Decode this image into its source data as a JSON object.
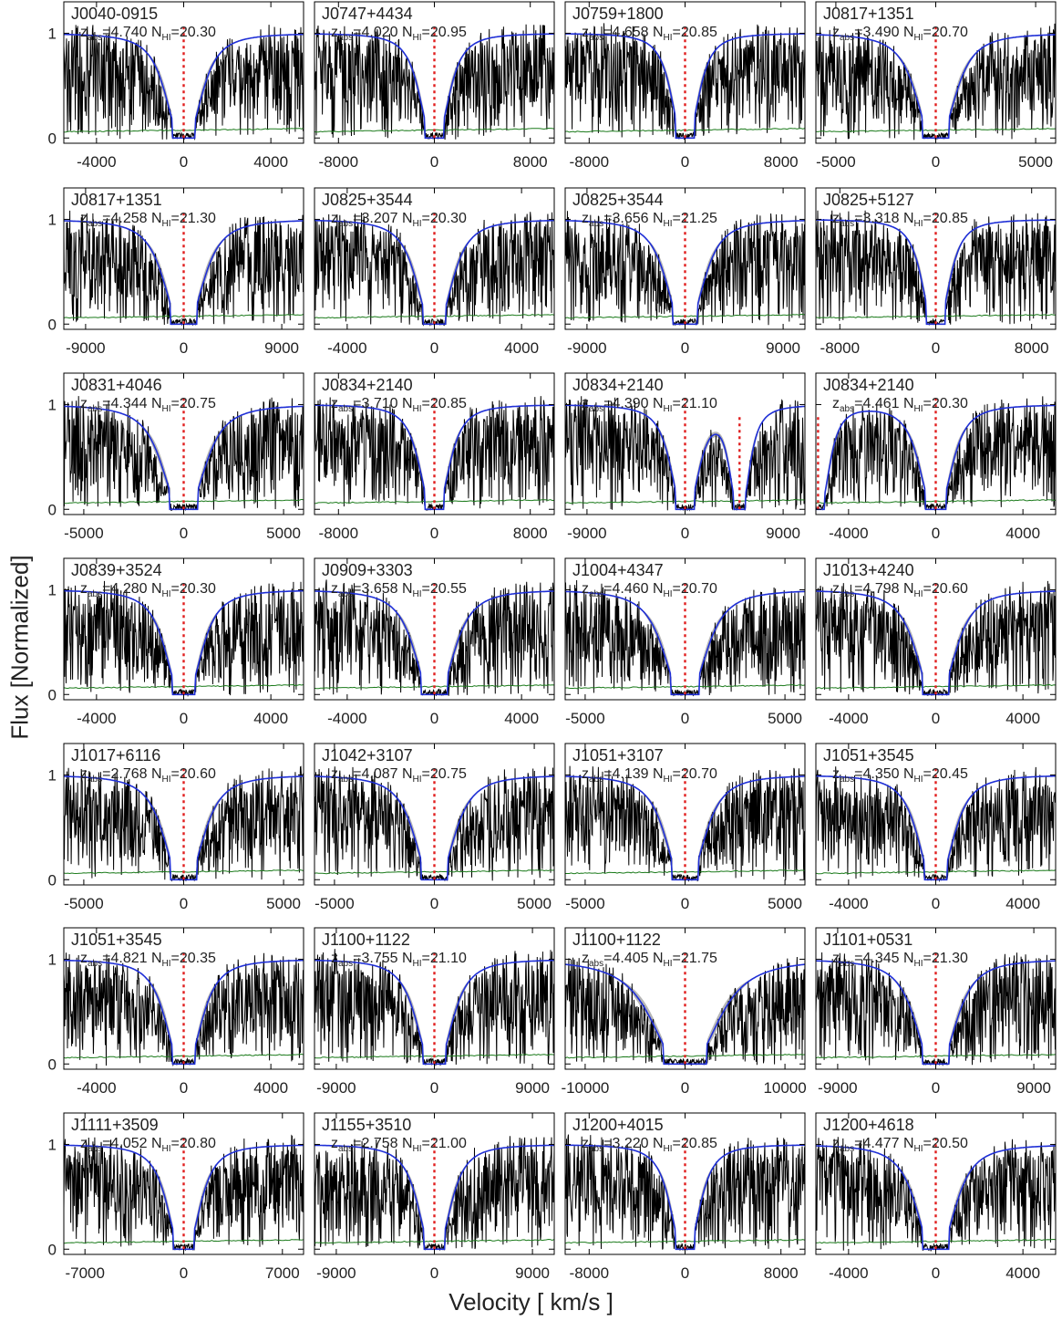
{
  "figure": {
    "xlabel": "Velocity [ km/s ]",
    "ylabel": "Flux [Normalized]"
  },
  "colors": {
    "model": "#1f2fd6",
    "model_band": "#b5b5b5",
    "data": "#000000",
    "error": "#1a7a1a",
    "zero_marker": "#e02020"
  },
  "chart_data": [
    {
      "type": "line",
      "quasar": "J0040-0915",
      "zabs": "4.740",
      "nhi": "20.30",
      "xlim": [
        -5500,
        5500
      ],
      "xticks": [
        -4000,
        0,
        4000
      ],
      "xticklabels": [
        "-4000",
        "0",
        "4000"
      ],
      "ylim": [
        -0.05,
        1.3
      ],
      "yticks": [
        0,
        1
      ],
      "yticklabels": [
        "0",
        "1"
      ],
      "core_halfwidth": 1000,
      "extra_marker": null
    },
    {
      "type": "line",
      "quasar": "J0747+4434",
      "zabs": "4.020",
      "nhi": "20.95",
      "xlim": [
        -10000,
        10000
      ],
      "xticks": [
        -8000,
        0,
        8000
      ],
      "xticklabels": [
        "-8000",
        "0",
        "8000"
      ],
      "ylim": [
        -0.05,
        1.3
      ],
      "yticks": [
        0,
        1
      ],
      "yticklabels": [
        "0",
        "1"
      ],
      "core_halfwidth": 1500,
      "extra_marker": null
    },
    {
      "type": "line",
      "quasar": "J0759+1800",
      "zabs": "4.658",
      "nhi": "20.85",
      "xlim": [
        -10000,
        10000
      ],
      "xticks": [
        -8000,
        0,
        8000
      ],
      "xticklabels": [
        "-8000",
        "0",
        "8000"
      ],
      "ylim": [
        -0.05,
        1.3
      ],
      "yticks": [
        0,
        1
      ],
      "yticklabels": [
        "0",
        "1"
      ],
      "core_halfwidth": 1400,
      "extra_marker": null
    },
    {
      "type": "line",
      "quasar": "J0817+1351",
      "zabs": "3.490",
      "nhi": "20.70",
      "xlim": [
        -6000,
        6000
      ],
      "xticks": [
        -5000,
        0,
        5000
      ],
      "xticklabels": [
        "-5000",
        "0",
        "5000"
      ],
      "ylim": [
        -0.05,
        1.3
      ],
      "yticks": [
        0,
        1
      ],
      "yticklabels": [
        "0",
        "1"
      ],
      "core_halfwidth": 1200,
      "extra_marker": null
    },
    {
      "type": "line",
      "quasar": "J0817+1351",
      "zabs": "4.258",
      "nhi": "21.30",
      "xlim": [
        -11000,
        11000
      ],
      "xticks": [
        -9000,
        0,
        9000
      ],
      "xticklabels": [
        "-9000",
        "0",
        "9000"
      ],
      "ylim": [
        -0.05,
        1.3
      ],
      "yticks": [
        0,
        1
      ],
      "yticklabels": [
        "0",
        "1"
      ],
      "core_halfwidth": 2200,
      "extra_marker": null
    },
    {
      "type": "line",
      "quasar": "J0825+3544",
      "zabs": "3.207",
      "nhi": "20.30",
      "xlim": [
        -5500,
        5500
      ],
      "xticks": [
        -4000,
        0,
        4000
      ],
      "xticklabels": [
        "-4000",
        "0",
        "4000"
      ],
      "ylim": [
        -0.05,
        1.3
      ],
      "yticks": [
        0,
        1
      ],
      "yticklabels": [
        "0",
        "1"
      ],
      "core_halfwidth": 1000,
      "extra_marker": null
    },
    {
      "type": "line",
      "quasar": "J0825+3544",
      "zabs": "3.656",
      "nhi": "21.25",
      "xlim": [
        -11000,
        11000
      ],
      "xticks": [
        -9000,
        0,
        9000
      ],
      "xticklabels": [
        "-9000",
        "0",
        "9000"
      ],
      "ylim": [
        -0.05,
        1.3
      ],
      "yticks": [
        0,
        1
      ],
      "yticklabels": [
        "0",
        "1"
      ],
      "core_halfwidth": 2100,
      "extra_marker": null
    },
    {
      "type": "line",
      "quasar": "J0825+5127",
      "zabs": "3.318",
      "nhi": "20.85",
      "xlim": [
        -10000,
        10000
      ],
      "xticks": [
        -8000,
        0,
        8000
      ],
      "xticklabels": [
        "-8000",
        "0",
        "8000"
      ],
      "ylim": [
        -0.05,
        1.3
      ],
      "yticks": [
        0,
        1
      ],
      "yticklabels": [
        "0",
        "1"
      ],
      "core_halfwidth": 1400,
      "extra_marker": null
    },
    {
      "type": "line",
      "quasar": "J0831+4046",
      "zabs": "4.344",
      "nhi": "20.75",
      "xlim": [
        -6000,
        6000
      ],
      "xticks": [
        -5000,
        0,
        5000
      ],
      "xticklabels": [
        "-5000",
        "0",
        "5000"
      ],
      "ylim": [
        -0.05,
        1.3
      ],
      "yticks": [
        0,
        1
      ],
      "yticklabels": [
        "0",
        "1"
      ],
      "core_halfwidth": 1300,
      "extra_marker": null
    },
    {
      "type": "line",
      "quasar": "J0834+2140",
      "zabs": "3.710",
      "nhi": "20.85",
      "xlim": [
        -10000,
        10000
      ],
      "xticks": [
        -8000,
        0,
        8000
      ],
      "xticklabels": [
        "-8000",
        "0",
        "8000"
      ],
      "ylim": [
        -0.05,
        1.3
      ],
      "yticks": [
        0,
        1
      ],
      "yticklabels": [
        "0",
        "1"
      ],
      "core_halfwidth": 1500,
      "extra_marker": null
    },
    {
      "type": "line",
      "quasar": "J0834+2140",
      "zabs": "4.390",
      "nhi": "21.10",
      "xlim": [
        -11000,
        11000
      ],
      "xticks": [
        -9000,
        0,
        9000
      ],
      "xticklabels": [
        "-9000",
        "0",
        "9000"
      ],
      "ylim": [
        -0.05,
        1.3
      ],
      "yticks": [
        0,
        1
      ],
      "yticklabels": [
        "0",
        "1"
      ],
      "core_halfwidth": 1600,
      "extra_marker": 5000
    },
    {
      "type": "line",
      "quasar": "J0834+2140",
      "zabs": "4.461",
      "nhi": "20.30",
      "xlim": [
        -5500,
        5500
      ],
      "xticks": [
        -4000,
        0,
        4000
      ],
      "xticklabels": [
        "-4000",
        "0",
        "4000"
      ],
      "ylim": [
        -0.05,
        1.3
      ],
      "yticks": [
        0,
        1
      ],
      "yticklabels": [
        "0",
        "1"
      ],
      "core_halfwidth": 900,
      "extra_marker": -5400
    },
    {
      "type": "line",
      "quasar": "J0839+3524",
      "zabs": "4.280",
      "nhi": "20.30",
      "xlim": [
        -5500,
        5500
      ],
      "xticks": [
        -4000,
        0,
        4000
      ],
      "xticklabels": [
        "-4000",
        "0",
        "4000"
      ],
      "ylim": [
        -0.05,
        1.3
      ],
      "yticks": [
        0,
        1
      ],
      "yticklabels": [
        "0",
        "1"
      ],
      "core_halfwidth": 1000,
      "extra_marker": null
    },
    {
      "type": "line",
      "quasar": "J0909+3303",
      "zabs": "3.658",
      "nhi": "20.55",
      "xlim": [
        -5500,
        5500
      ],
      "xticks": [
        -4000,
        0,
        4000
      ],
      "xticklabels": [
        "-4000",
        "0",
        "4000"
      ],
      "ylim": [
        -0.05,
        1.3
      ],
      "yticks": [
        0,
        1
      ],
      "yticklabels": [
        "0",
        "1"
      ],
      "core_halfwidth": 1100,
      "extra_marker": null
    },
    {
      "type": "line",
      "quasar": "J1004+4347",
      "zabs": "4.460",
      "nhi": "20.70",
      "xlim": [
        -6000,
        6000
      ],
      "xticks": [
        -5000,
        0,
        5000
      ],
      "xticklabels": [
        "-5000",
        "0",
        "5000"
      ],
      "ylim": [
        -0.05,
        1.3
      ],
      "yticks": [
        0,
        1
      ],
      "yticklabels": [
        "0",
        "1"
      ],
      "core_halfwidth": 1300,
      "extra_marker": null
    },
    {
      "type": "line",
      "quasar": "J1013+4240",
      "zabs": "4.798",
      "nhi": "20.60",
      "xlim": [
        -5500,
        5500
      ],
      "xticks": [
        -4000,
        0,
        4000
      ],
      "xticklabels": [
        "-4000",
        "0",
        "4000"
      ],
      "ylim": [
        -0.05,
        1.3
      ],
      "yticks": [
        0,
        1
      ],
      "yticklabels": [
        "0",
        "1"
      ],
      "core_halfwidth": 1100,
      "extra_marker": null
    },
    {
      "type": "line",
      "quasar": "J1017+6116",
      "zabs": "2.768",
      "nhi": "20.60",
      "xlim": [
        -6000,
        6000
      ],
      "xticks": [
        -5000,
        0,
        5000
      ],
      "xticklabels": [
        "-5000",
        "0",
        "5000"
      ],
      "ylim": [
        -0.05,
        1.3
      ],
      "yticks": [
        0,
        1
      ],
      "yticklabels": [
        "0",
        "1"
      ],
      "core_halfwidth": 1200,
      "extra_marker": null
    },
    {
      "type": "line",
      "quasar": "J1042+3107",
      "zabs": "4.087",
      "nhi": "20.75",
      "xlim": [
        -6000,
        6000
      ],
      "xticks": [
        -5000,
        0,
        5000
      ],
      "xticklabels": [
        "-5000",
        "0",
        "5000"
      ],
      "ylim": [
        -0.05,
        1.3
      ],
      "yticks": [
        0,
        1
      ],
      "yticklabels": [
        "0",
        "1"
      ],
      "core_halfwidth": 1200,
      "extra_marker": null
    },
    {
      "type": "line",
      "quasar": "J1051+3107",
      "zabs": "4.139",
      "nhi": "20.70",
      "xlim": [
        -6000,
        6000
      ],
      "xticks": [
        -5000,
        0,
        5000
      ],
      "xticklabels": [
        "-5000",
        "0",
        "5000"
      ],
      "ylim": [
        -0.05,
        1.3
      ],
      "yticks": [
        0,
        1
      ],
      "yticklabels": [
        "0",
        "1"
      ],
      "core_halfwidth": 1200,
      "extra_marker": null
    },
    {
      "type": "line",
      "quasar": "J1051+3545",
      "zabs": "4.350",
      "nhi": "20.45",
      "xlim": [
        -5500,
        5500
      ],
      "xticks": [
        -4000,
        0,
        4000
      ],
      "xticklabels": [
        "-4000",
        "0",
        "4000"
      ],
      "ylim": [
        -0.05,
        1.3
      ],
      "yticks": [
        0,
        1
      ],
      "yticklabels": [
        "0",
        "1"
      ],
      "core_halfwidth": 1000,
      "extra_marker": null
    },
    {
      "type": "line",
      "quasar": "J1051+3545",
      "zabs": "4.821",
      "nhi": "20.35",
      "xlim": [
        -5500,
        5500
      ],
      "xticks": [
        -4000,
        0,
        4000
      ],
      "xticklabels": [
        "-4000",
        "0",
        "4000"
      ],
      "ylim": [
        -0.05,
        1.3
      ],
      "yticks": [
        0,
        1
      ],
      "yticklabels": [
        "0",
        "1"
      ],
      "core_halfwidth": 1000,
      "extra_marker": null
    },
    {
      "type": "line",
      "quasar": "J1100+1122",
      "zabs": "3.755",
      "nhi": "21.10",
      "xlim": [
        -11000,
        11000
      ],
      "xticks": [
        -9000,
        0,
        9000
      ],
      "xticklabels": [
        "-9000",
        "0",
        "9000"
      ],
      "ylim": [
        -0.05,
        1.3
      ],
      "yticks": [
        0,
        1
      ],
      "yticklabels": [
        "0",
        "1"
      ],
      "core_halfwidth": 2000,
      "extra_marker": null
    },
    {
      "type": "line",
      "quasar": "J1100+1122",
      "zabs": "4.405",
      "nhi": "21.75",
      "xlim": [
        -12000,
        12000
      ],
      "xticks": [
        -10000,
        0,
        10000
      ],
      "xticklabels": [
        "-10000",
        "0",
        "10000"
      ],
      "ylim": [
        -0.05,
        1.3
      ],
      "yticks": [
        0,
        1
      ],
      "yticklabels": [
        "0",
        "1"
      ],
      "core_halfwidth": 4000,
      "extra_marker": null
    },
    {
      "type": "line",
      "quasar": "J1101+0531",
      "zabs": "4.345",
      "nhi": "21.30",
      "xlim": [
        -11000,
        11000
      ],
      "xticks": [
        -9000,
        0,
        9000
      ],
      "xticklabels": [
        "-9000",
        "0",
        "9000"
      ],
      "ylim": [
        -0.05,
        1.3
      ],
      "yticks": [
        0,
        1
      ],
      "yticklabels": [
        "0",
        "1"
      ],
      "core_halfwidth": 2300,
      "extra_marker": null
    },
    {
      "type": "line",
      "quasar": "J1111+3509",
      "zabs": "4.052",
      "nhi": "20.80",
      "xlim": [
        -8500,
        8500
      ],
      "xticks": [
        -7000,
        0,
        7000
      ],
      "xticklabels": [
        "-7000",
        "0",
        "7000"
      ],
      "ylim": [
        -0.05,
        1.3
      ],
      "yticks": [
        0,
        1
      ],
      "yticklabels": [
        "0",
        "1"
      ],
      "core_halfwidth": 1400,
      "extra_marker": null
    },
    {
      "type": "line",
      "quasar": "J1155+3510",
      "zabs": "2.758",
      "nhi": "21.00",
      "xlim": [
        -11000,
        11000
      ],
      "xticks": [
        -9000,
        0,
        9000
      ],
      "xticklabels": [
        "-9000",
        "0",
        "9000"
      ],
      "ylim": [
        -0.05,
        1.3
      ],
      "yticks": [
        0,
        1
      ],
      "yticklabels": [
        "0",
        "1"
      ],
      "core_halfwidth": 1800,
      "extra_marker": null
    },
    {
      "type": "line",
      "quasar": "J1200+4015",
      "zabs": "3.220",
      "nhi": "20.85",
      "xlim": [
        -10000,
        10000
      ],
      "xticks": [
        -8000,
        0,
        8000
      ],
      "xticklabels": [
        "-8000",
        "0",
        "8000"
      ],
      "ylim": [
        -0.05,
        1.3
      ],
      "yticks": [
        0,
        1
      ],
      "yticklabels": [
        "0",
        "1"
      ],
      "core_halfwidth": 1500,
      "extra_marker": null
    },
    {
      "type": "line",
      "quasar": "J1200+4618",
      "zabs": "4.477",
      "nhi": "20.50",
      "xlim": [
        -5500,
        5500
      ],
      "xticks": [
        -4000,
        0,
        4000
      ],
      "xticklabels": [
        "-4000",
        "0",
        "4000"
      ],
      "ylim": [
        -0.05,
        1.3
      ],
      "yticks": [
        0,
        1
      ],
      "yticklabels": [
        "0",
        "1"
      ],
      "core_halfwidth": 1100,
      "extra_marker": null
    }
  ]
}
